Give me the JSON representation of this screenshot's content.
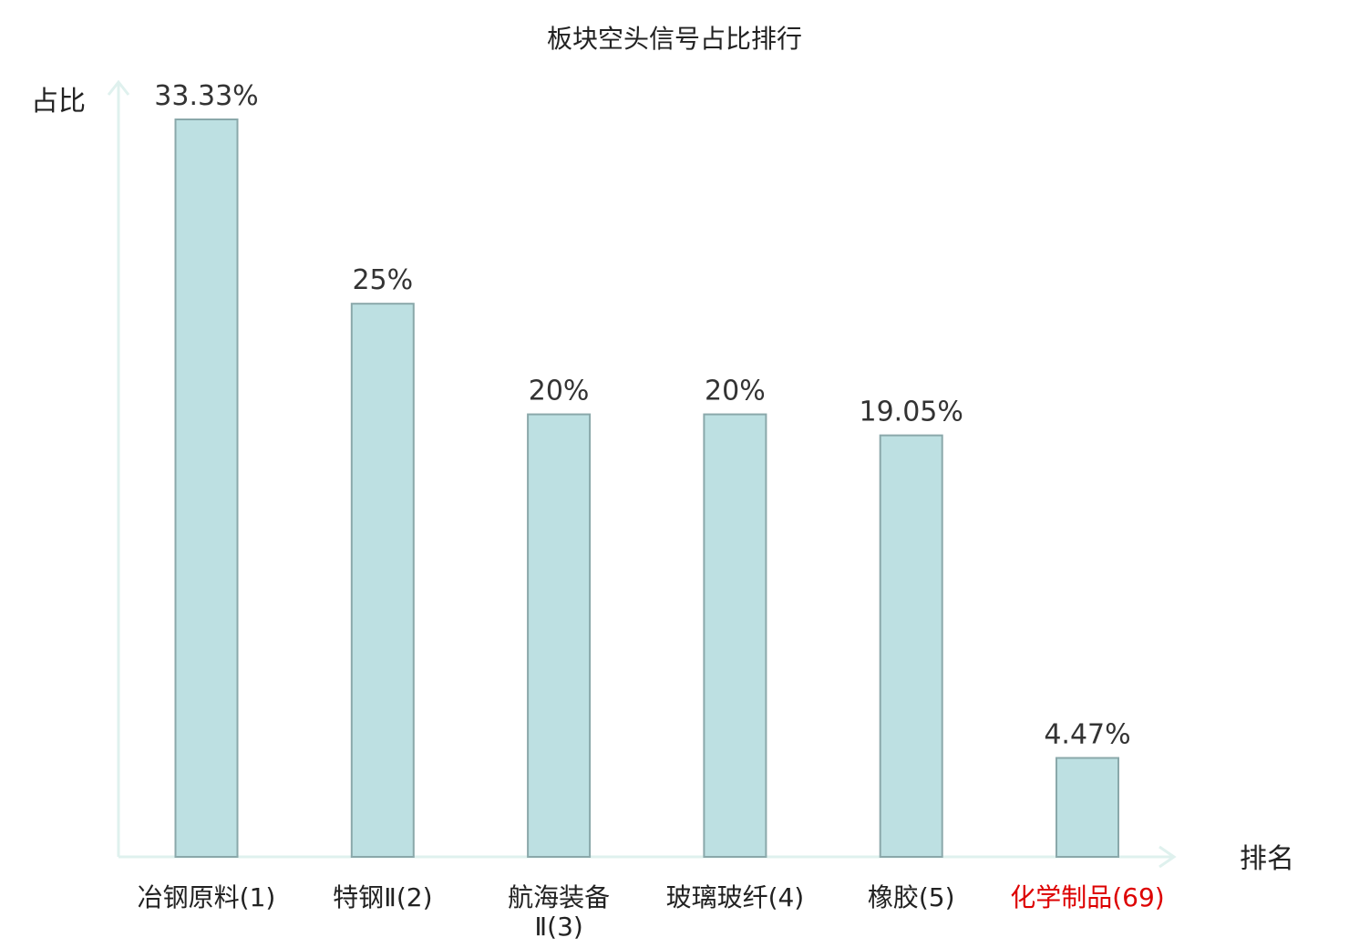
{
  "chart_data": {
    "type": "bar",
    "title": "板块空头信号占比排行",
    "ylabel": "占比",
    "xlabel": "排名",
    "categories": [
      [
        "冶钢原料(1)"
      ],
      [
        "特钢Ⅱ(2)"
      ],
      [
        "航海装备",
        "Ⅱ(3)"
      ],
      [
        "玻璃玻纤(4)"
      ],
      [
        "橡胶(5)"
      ],
      [
        "化学制品(69)"
      ]
    ],
    "values": [
      33.33,
      25,
      20,
      20,
      19.05,
      4.47
    ],
    "value_labels": [
      "33.33%",
      "25%",
      "20%",
      "20%",
      "19.05%",
      "4.47%"
    ],
    "highlight_index": 5,
    "ylim": [
      0,
      33.33
    ],
    "grid": false,
    "colors": {
      "bar_fill": "#bde0e2",
      "bar_stroke": "#8aa8aa",
      "axis": "#dff1ee",
      "text": "#222222",
      "highlight": "#dd0000"
    }
  }
}
